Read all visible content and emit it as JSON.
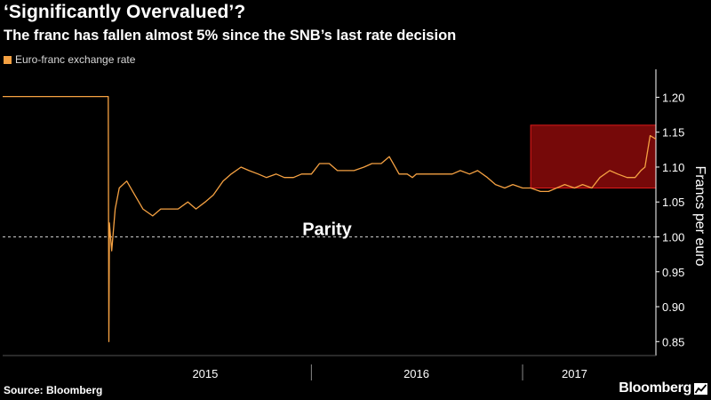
{
  "header": {
    "title": "‘Significantly Overvalued’?",
    "subtitle": "The franc has fallen almost 5% since the SNB’s last rate decision"
  },
  "legend": {
    "label": "Euro-franc exchange rate",
    "color": "#f5a142"
  },
  "footer": {
    "source": "Source: Bloomberg",
    "brand": "Bloomberg"
  },
  "colors": {
    "background": "#000000",
    "line": "#f5a142",
    "highlight_fill": "#8b0b0b",
    "highlight_stroke": "#e01a1a",
    "axis": "#ffffff",
    "gridline": "#cccccc"
  },
  "chart_data": {
    "type": "line",
    "title": "‘Significantly Overvalued’?",
    "subtitle": "The franc has fallen almost 5% since the SNB’s last rate decision",
    "xlabel": "",
    "ylabel": "Francs per euro",
    "ylim": [
      0.83,
      1.24
    ],
    "xlim": [
      "2014-07-15",
      "2017-08-20"
    ],
    "y_ticks": [
      0.85,
      0.9,
      0.95,
      1.0,
      1.05,
      1.1,
      1.15,
      1.2
    ],
    "y_tick_labels": [
      "0.85",
      "0.90",
      "0.95",
      "1.00",
      "1.05",
      "1.10",
      "1.15",
      "1.20"
    ],
    "x_tick_labels": [
      {
        "label": "2015",
        "date": "2015-07-01"
      },
      {
        "label": "2016",
        "date": "2016-07-01"
      },
      {
        "label": "2017",
        "date": "2017-04-01"
      }
    ],
    "x_separators": [
      "2016-01-01",
      "2017-01-01"
    ],
    "reference_line": {
      "y": 1.0,
      "label": "Parity",
      "style": "dashed"
    },
    "highlight_box": {
      "x": [
        "2017-01-15",
        "2017-08-20"
      ],
      "y": [
        1.07,
        1.16
      ]
    },
    "legend_position": "top-left",
    "grid": false,
    "series": [
      {
        "name": "Euro-franc exchange rate",
        "color": "#f5a142",
        "x": [
          "2014-07-15",
          "2015-01-14",
          "2015-01-15",
          "2015-01-16",
          "2015-01-20",
          "2015-01-26",
          "2015-02-02",
          "2015-02-15",
          "2015-03-01",
          "2015-03-15",
          "2015-04-01",
          "2015-04-15",
          "2015-05-01",
          "2015-05-15",
          "2015-06-01",
          "2015-06-15",
          "2015-07-01",
          "2015-07-15",
          "2015-08-01",
          "2015-08-15",
          "2015-09-01",
          "2015-09-15",
          "2015-10-01",
          "2015-10-15",
          "2015-11-01",
          "2015-11-15",
          "2015-12-01",
          "2015-12-15",
          "2016-01-01",
          "2016-01-15",
          "2016-02-01",
          "2016-02-15",
          "2016-03-01",
          "2016-03-15",
          "2016-04-01",
          "2016-04-15",
          "2016-05-01",
          "2016-05-15",
          "2016-06-01",
          "2016-06-15",
          "2016-06-24",
          "2016-07-01",
          "2016-07-15",
          "2016-08-01",
          "2016-08-15",
          "2016-09-01",
          "2016-09-15",
          "2016-10-01",
          "2016-10-15",
          "2016-11-01",
          "2016-11-15",
          "2016-12-01",
          "2016-12-15",
          "2017-01-01",
          "2017-01-15",
          "2017-02-01",
          "2017-02-15",
          "2017-03-01",
          "2017-03-15",
          "2017-04-01",
          "2017-04-15",
          "2017-05-01",
          "2017-05-15",
          "2017-06-01",
          "2017-06-15",
          "2017-07-01",
          "2017-07-15",
          "2017-07-25",
          "2017-08-01",
          "2017-08-10",
          "2017-08-20"
        ],
        "values": [
          1.201,
          1.201,
          0.85,
          1.02,
          0.98,
          1.04,
          1.07,
          1.08,
          1.06,
          1.04,
          1.03,
          1.04,
          1.04,
          1.04,
          1.05,
          1.04,
          1.05,
          1.06,
          1.08,
          1.09,
          1.1,
          1.095,
          1.09,
          1.085,
          1.09,
          1.085,
          1.085,
          1.09,
          1.09,
          1.105,
          1.105,
          1.095,
          1.095,
          1.095,
          1.1,
          1.105,
          1.105,
          1.115,
          1.09,
          1.09,
          1.085,
          1.09,
          1.09,
          1.09,
          1.09,
          1.09,
          1.095,
          1.09,
          1.095,
          1.085,
          1.075,
          1.07,
          1.075,
          1.07,
          1.07,
          1.065,
          1.065,
          1.07,
          1.075,
          1.07,
          1.075,
          1.07,
          1.085,
          1.095,
          1.09,
          1.085,
          1.085,
          1.095,
          1.1,
          1.145,
          1.14
        ]
      }
    ]
  }
}
